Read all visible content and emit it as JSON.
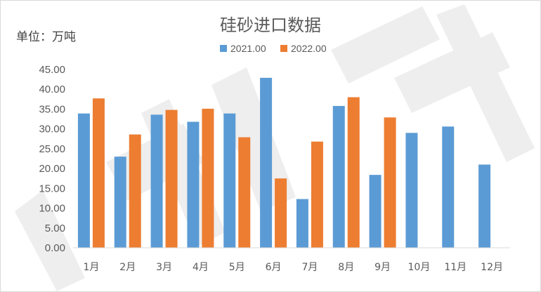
{
  "chart_data": {
    "type": "bar",
    "title": "硅砂进口数据",
    "unit_label": "单位：万吨",
    "categories": [
      "1月",
      "2月",
      "3月",
      "4月",
      "5月",
      "6月",
      "7月",
      "8月",
      "9月",
      "10月",
      "11月",
      "12月"
    ],
    "series": [
      {
        "name": "2021.00",
        "color": "#5b9bd5",
        "values": [
          33.9,
          23.0,
          33.6,
          31.8,
          33.9,
          42.9,
          12.3,
          35.8,
          18.4,
          29.0,
          30.6,
          21.0
        ]
      },
      {
        "name": "2022.00",
        "color": "#ed7d31",
        "values": [
          37.7,
          28.6,
          34.8,
          35.1,
          27.9,
          17.5,
          26.8,
          38.0,
          32.9,
          null,
          null,
          null
        ]
      }
    ],
    "ylim": [
      0,
      45
    ],
    "yticks": [
      "0.00",
      "5.00",
      "10.00",
      "15.00",
      "20.00",
      "25.00",
      "30.00",
      "35.00",
      "40.00",
      "45.00"
    ],
    "grid": false,
    "legend_position": "top-center",
    "watermark": "钢联数据"
  }
}
